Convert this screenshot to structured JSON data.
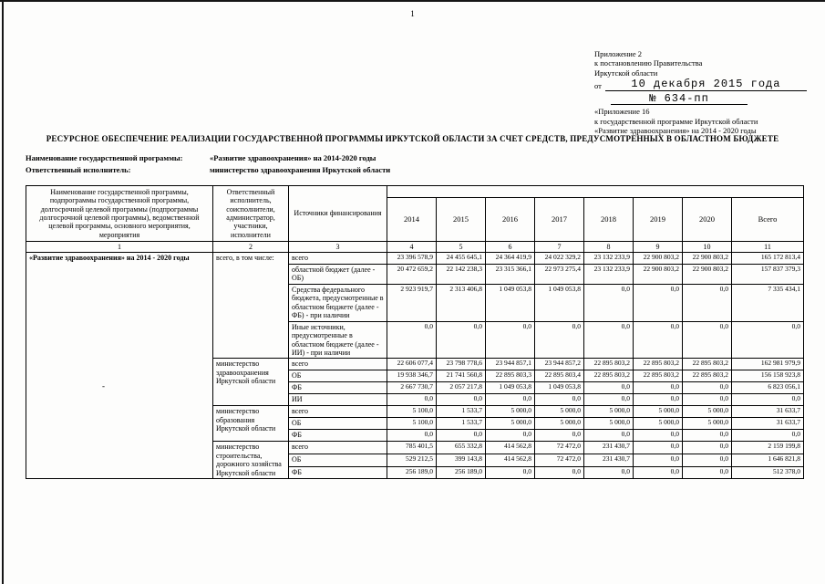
{
  "page": {
    "number": "1",
    "stray_mark": "-"
  },
  "appendix": {
    "line1": "Приложение 2",
    "line2": "к постановлению Правительства",
    "line3": "Иркутской области",
    "from_label": "от",
    "date_value": "10 декабря 2015 года",
    "number_value": "№ 634-пп",
    "line4": "«Приложение 16",
    "line5": "к государственной программе Иркутской области",
    "line6": "«Развитие здравоохранения» на 2014 - 2020 годы"
  },
  "title": "РЕСУРСНОЕ ОБЕСПЕЧЕНИЕ РЕАЛИЗАЦИИ ГОСУДАРСТВЕННОЙ ПРОГРАММЫ ИРКУТСКОЙ ОБЛАСТИ ЗА СЧЕТ СРЕДСТВ, ПРЕДУСМОТРЕННЫХ В ОБЛАСТНОМ БЮДЖЕТЕ",
  "meta": {
    "program_label": "Наименование государственной программы:",
    "program_value": "«Развитие здравоохранения» на 2014-2020 годы",
    "executor_label": "Ответственный исполнитель:",
    "executor_value": "министерство здравоохранения Иркутской области"
  },
  "table": {
    "program_name": "«Развитие здравоохранения» на 2014 - 2020 годы",
    "header": {
      "col1": "Наименование государственной программы, подпрограммы государственной программы, долгосрочной целевой программы (подпрограммы долгосрочной целевой программы), ведомственной целевой программы, основного мероприятия, мероприятия",
      "col2": "Ответственный исполнитель, соисполнители, администратор, участники, исполнители",
      "col3": "Источники финансирования",
      "years": [
        "2014",
        "2015",
        "2016",
        "2017",
        "2018",
        "2019",
        "2020",
        "Всего"
      ],
      "col_numbers": [
        "1",
        "2",
        "3",
        "4",
        "5",
        "6",
        "7",
        "8",
        "9",
        "10",
        "11"
      ]
    },
    "groups": [
      {
        "executor": "всего, в том числе:",
        "rows": [
          {
            "source": "всего",
            "values": [
              "23 396 578,9",
              "24 455 645,1",
              "24 364 419,9",
              "24 022 329,2",
              "23 132 233,9",
              "22 900 803,2",
              "22 900 803,2",
              "165 172 813,4"
            ]
          },
          {
            "source": "областной бюджет (далее - ОБ)",
            "values": [
              "20 472 659,2",
              "22 142 238,3",
              "23 315 366,1",
              "22 973 275,4",
              "23 132 233,9",
              "22 900 803,2",
              "22 900 803,2",
              "157 837 379,3"
            ]
          },
          {
            "source": "Средства федерального бюджета, предусмотренные в областном бюджете (далее - ФБ) - при наличии",
            "values": [
              "2 923 919,7",
              "2 313 406,8",
              "1 049 053,8",
              "1 049 053,8",
              "0,0",
              "0,0",
              "0,0",
              "7 335 434,1"
            ]
          },
          {
            "source": "Иные источники, предусмотренные в областном бюджете (далее - ИИ) - при наличии",
            "values": [
              "0,0",
              "0,0",
              "0,0",
              "0,0",
              "0,0",
              "0,0",
              "0,0",
              "0,0"
            ]
          }
        ]
      },
      {
        "executor": "министерство здравоохранения Иркутской области",
        "rows": [
          {
            "source": "всего",
            "values": [
              "22 606 077,4",
              "23 798 778,6",
              "23 944 857,1",
              "23 944 857,2",
              "22 895 803,2",
              "22 895 803,2",
              "22 895 803,2",
              "162 981 979,9"
            ]
          },
          {
            "source": "ОБ",
            "values": [
              "19 938 346,7",
              "21 741 560,8",
              "22 895 803,3",
              "22 895 803,4",
              "22 895 803,2",
              "22 895 803,2",
              "22 895 803,2",
              "156 158 923,8"
            ]
          },
          {
            "source": "ФБ",
            "values": [
              "2 667 730,7",
              "2 057 217,8",
              "1 049 053,8",
              "1 049 053,8",
              "0,0",
              "0,0",
              "0,0",
              "6 823 056,1"
            ]
          },
          {
            "source": "ИИ",
            "values": [
              "0,0",
              "0,0",
              "0,0",
              "0,0",
              "0,0",
              "0,0",
              "0,0",
              "0,0"
            ]
          }
        ]
      },
      {
        "executor": "министерство образования Иркутской области",
        "rows": [
          {
            "source": "всего",
            "values": [
              "5 100,0",
              "1 533,7",
              "5 000,0",
              "5 000,0",
              "5 000,0",
              "5 000,0",
              "5 000,0",
              "31 633,7"
            ]
          },
          {
            "source": "ОБ",
            "values": [
              "5 100,0",
              "1 533,7",
              "5 000,0",
              "5 000,0",
              "5 000,0",
              "5 000,0",
              "5 000,0",
              "31 633,7"
            ]
          },
          {
            "source": "ФБ",
            "values": [
              "0,0",
              "0,0",
              "0,0",
              "0,0",
              "0,0",
              "0,0",
              "0,0",
              "0,0"
            ]
          }
        ]
      },
      {
        "executor": "министерство строительства, дорожного хозяйства Иркутской области",
        "rows": [
          {
            "source": "всего",
            "values": [
              "785 401,5",
              "655 332,8",
              "414 562,8",
              "72 472,0",
              "231 430,7",
              "0,0",
              "0,0",
              "2 159 199,8"
            ]
          },
          {
            "source": "ОБ",
            "values": [
              "529 212,5",
              "399 143,8",
              "414 562,8",
              "72 472,0",
              "231 430,7",
              "0,0",
              "0,0",
              "1 646 821,8"
            ]
          },
          {
            "source": "ФБ",
            "values": [
              "256 189,0",
              "256 189,0",
              "0,0",
              "0,0",
              "0,0",
              "0,0",
              "0,0",
              "512 378,0"
            ]
          }
        ]
      }
    ]
  }
}
